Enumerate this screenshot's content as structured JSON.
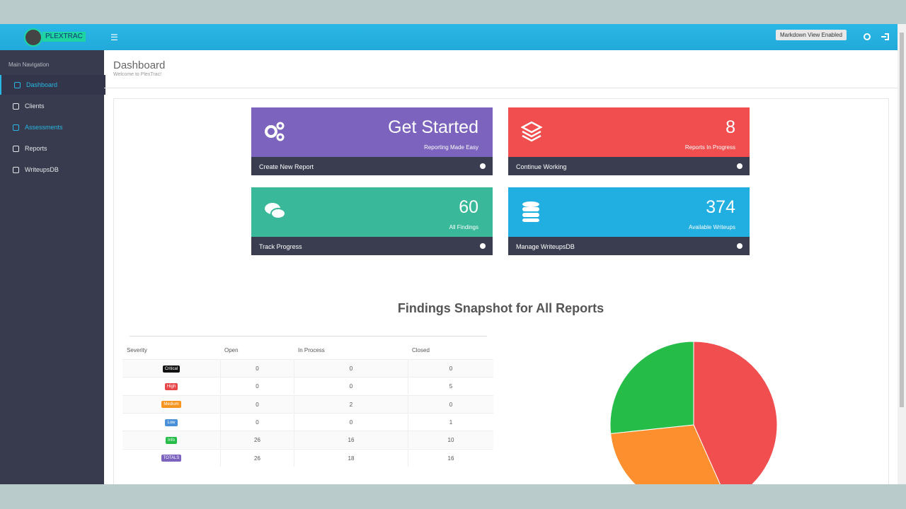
{
  "header": {
    "logo": "PLEXTRAC",
    "badge": "Markdown View Enabled"
  },
  "sidebar": {
    "heading": "Main Navigation",
    "items": [
      "Dashboard",
      "Clients",
      "Assessments",
      "Reports",
      "WriteupsDB"
    ]
  },
  "page": {
    "title": "Dashboard",
    "subtitle": "Welcome to PlexTrac!"
  },
  "cards": [
    {
      "value": "Get Started",
      "label": "Reporting Made Easy",
      "action": "Create New Report"
    },
    {
      "value": 8,
      "label": "Reports In Progress",
      "action": "Continue Working"
    },
    {
      "value": 60,
      "label": "All Findings",
      "action": "Track Progress"
    },
    {
      "value": 374,
      "label": "Available Writeups",
      "action": "Manage WriteupsDB"
    }
  ],
  "section_title": "Findings Snapshot for All Reports",
  "table": {
    "columns": [
      "Severity",
      "Open",
      "In Process",
      "Closed"
    ],
    "rows": [
      [
        "Critical",
        0,
        0,
        0
      ],
      [
        "High",
        0,
        0,
        5
      ],
      [
        "Medium",
        0,
        2,
        0
      ],
      [
        "Low",
        0,
        0,
        1
      ],
      [
        "Info",
        26,
        16,
        10
      ],
      [
        "TOTALS",
        26,
        18,
        16
      ]
    ]
  },
  "pie": {
    "colors": [
      "#f04e4f",
      "#fd8f2e",
      "#25bd48"
    ]
  }
}
